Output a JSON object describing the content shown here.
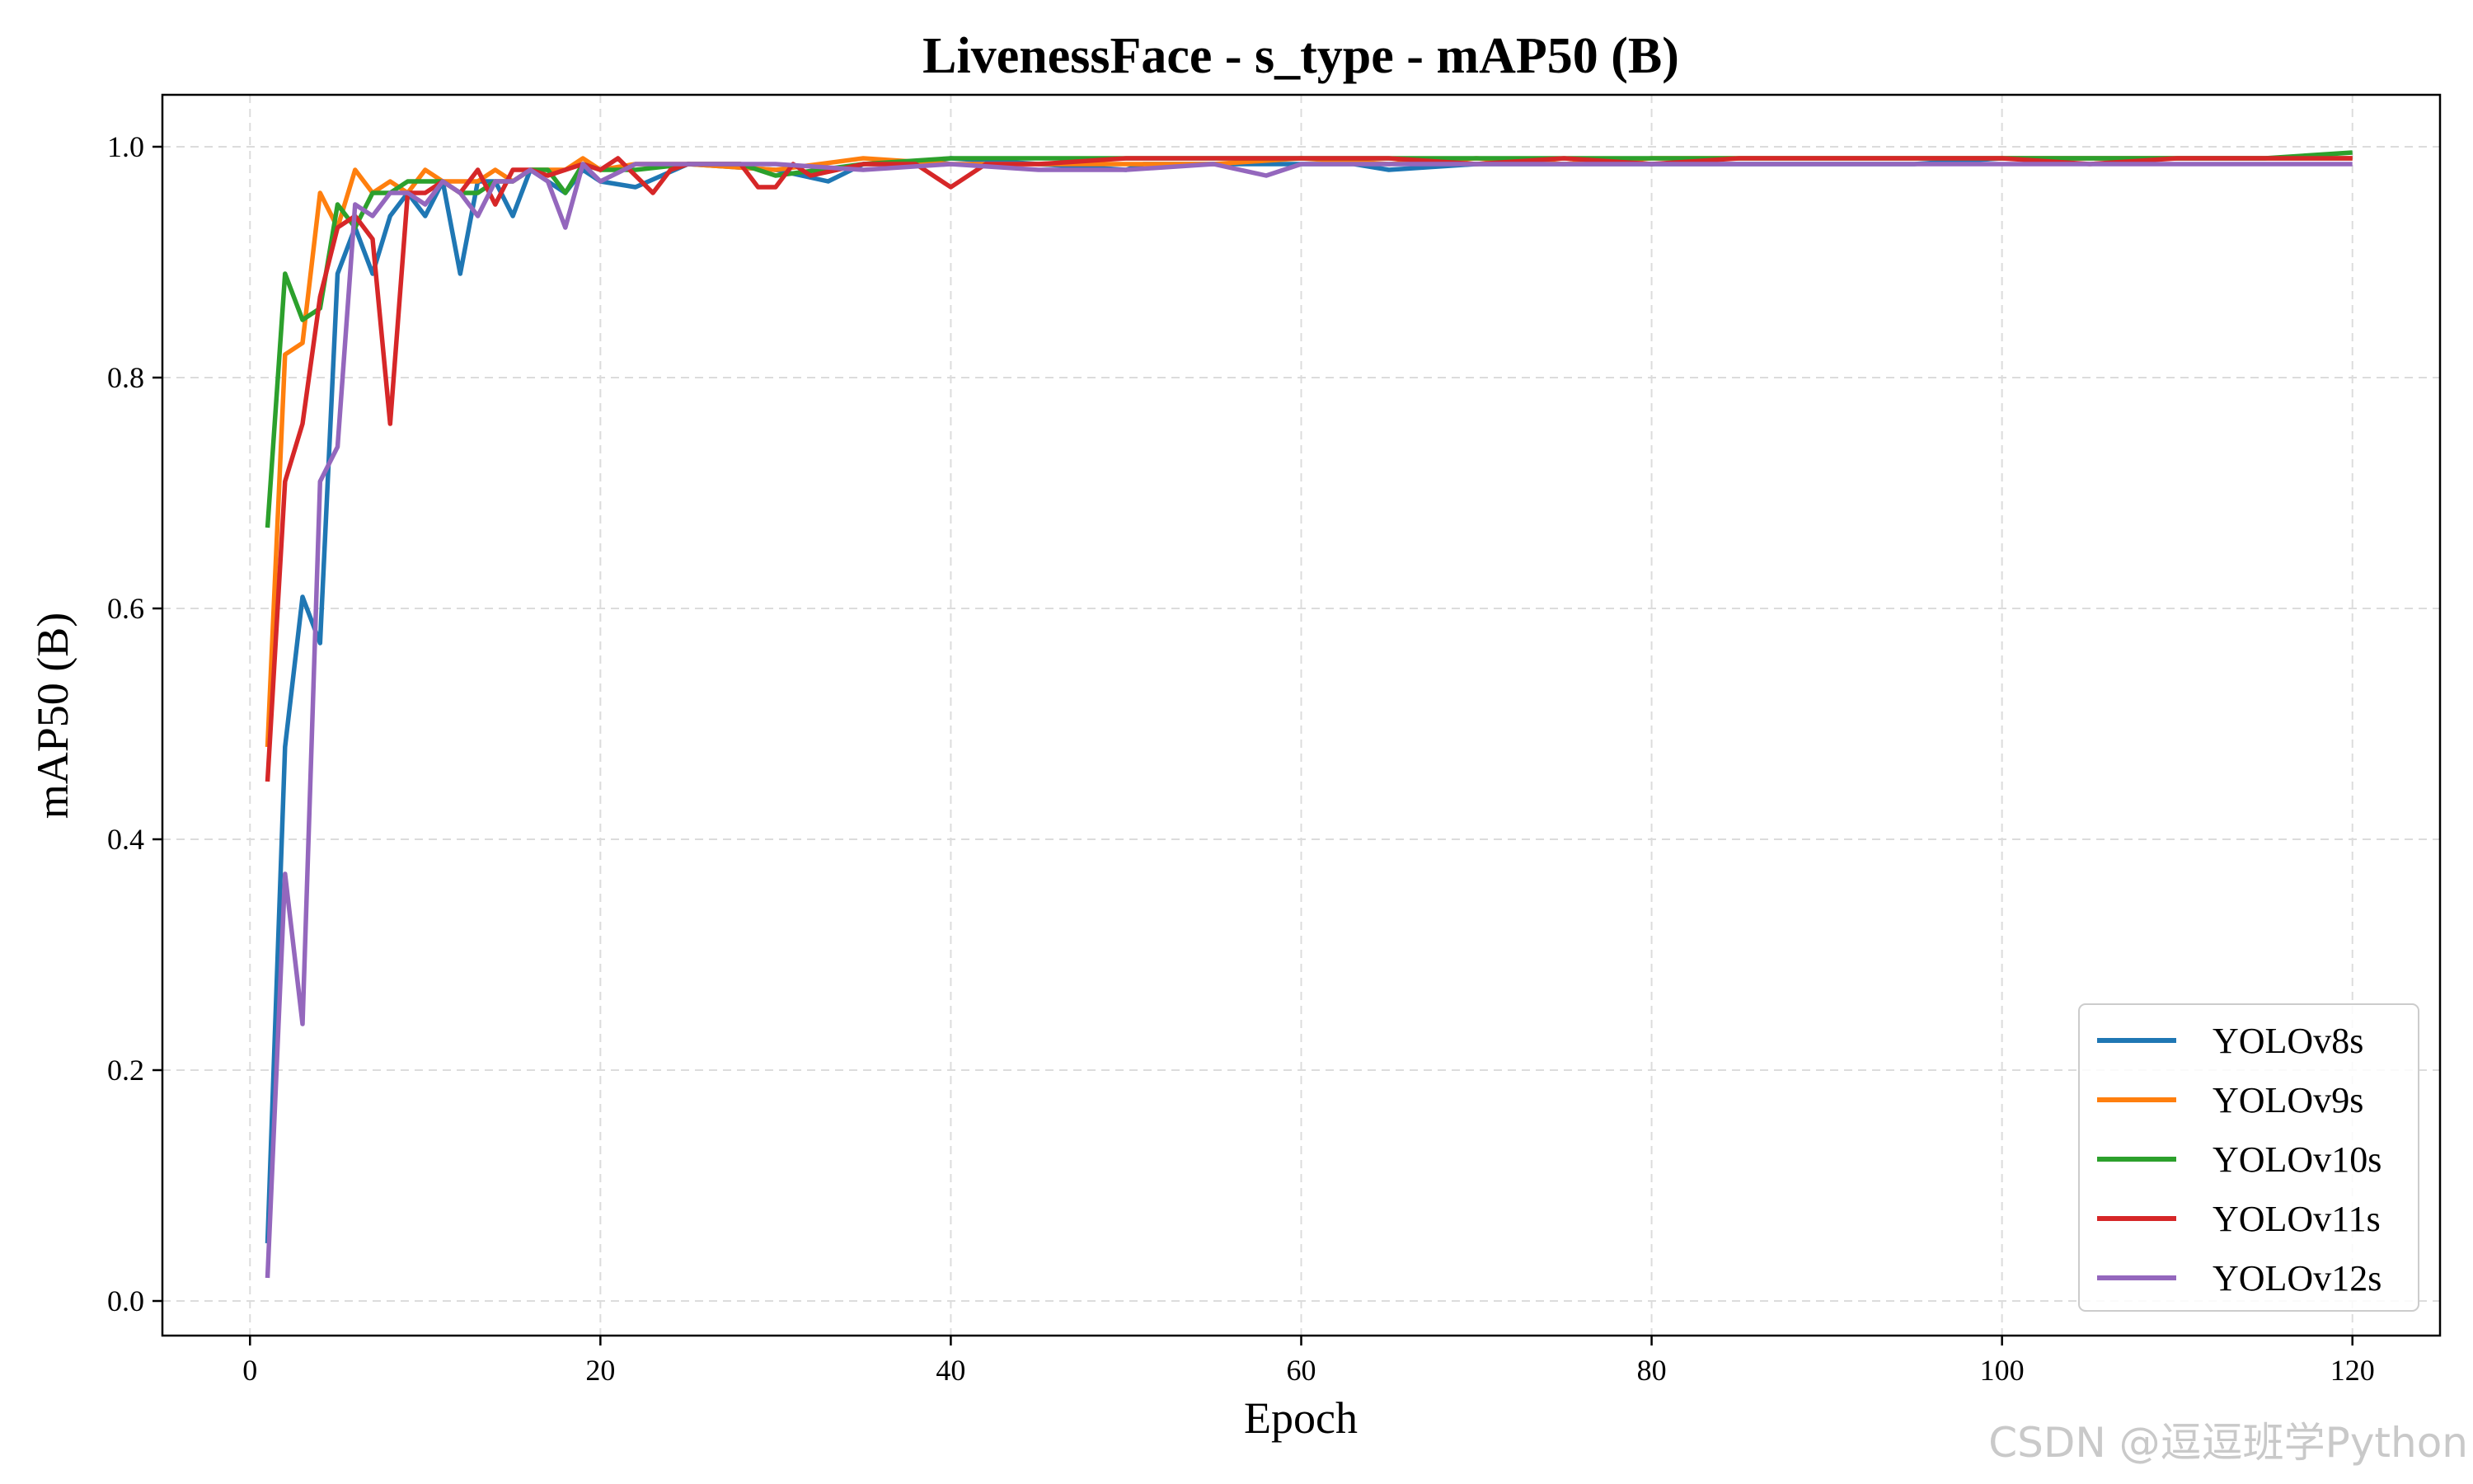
{
  "watermark": "CSDN @逗逗班学Python",
  "chart_data": {
    "type": "line",
    "title": "LivenessFace - s_type - mAP50 (B)",
    "xlabel": "Epoch",
    "ylabel": "mAP50 (B)",
    "xlim": [
      -5,
      125
    ],
    "ylim": [
      -0.03,
      1.045
    ],
    "xticks": [
      0,
      20,
      40,
      60,
      80,
      100,
      120
    ],
    "yticks": [
      0.0,
      0.2,
      0.4,
      0.6,
      0.8,
      1.0
    ],
    "grid": true,
    "legend": "lower right",
    "series": [
      {
        "name": "YOLOv8s",
        "color": "#1f77b4",
        "x": [
          1,
          2,
          3,
          4,
          5,
          6,
          7,
          8,
          9,
          10,
          11,
          12,
          13,
          14,
          15,
          16,
          17,
          18,
          19,
          20,
          22,
          25,
          30,
          33,
          35,
          38,
          40,
          45,
          50,
          51,
          55,
          60,
          63,
          65,
          70,
          75,
          80,
          85,
          90,
          95,
          100,
          105,
          110,
          115,
          120
        ],
        "y": [
          0.05,
          0.48,
          0.61,
          0.57,
          0.89,
          0.93,
          0.89,
          0.94,
          0.96,
          0.94,
          0.97,
          0.89,
          0.97,
          0.97,
          0.94,
          0.98,
          0.97,
          0.96,
          0.98,
          0.97,
          0.965,
          0.985,
          0.98,
          0.97,
          0.985,
          0.985,
          0.99,
          0.985,
          0.98,
          0.985,
          0.985,
          0.985,
          0.985,
          0.98,
          0.985,
          0.985,
          0.985,
          0.985,
          0.985,
          0.985,
          0.99,
          0.99,
          0.99,
          0.99,
          0.99
        ]
      },
      {
        "name": "YOLOv9s",
        "color": "#ff7f0e",
        "x": [
          1,
          2,
          3,
          4,
          5,
          6,
          7,
          8,
          9,
          10,
          11,
          12,
          13,
          14,
          15,
          16,
          17,
          18,
          19,
          20,
          22,
          25,
          30,
          35,
          40,
          45,
          50,
          55,
          60,
          65,
          70,
          75,
          80,
          85,
          90,
          95,
          100,
          105,
          110,
          115,
          120
        ],
        "y": [
          0.48,
          0.82,
          0.83,
          0.96,
          0.93,
          0.98,
          0.96,
          0.97,
          0.96,
          0.98,
          0.97,
          0.97,
          0.97,
          0.98,
          0.97,
          0.98,
          0.98,
          0.98,
          0.99,
          0.98,
          0.985,
          0.985,
          0.98,
          0.99,
          0.985,
          0.985,
          0.985,
          0.985,
          0.99,
          0.985,
          0.99,
          0.985,
          0.99,
          0.99,
          0.99,
          0.99,
          0.99,
          0.99,
          0.99,
          0.99,
          0.99
        ]
      },
      {
        "name": "YOLOv10s",
        "color": "#2ca02c",
        "x": [
          1,
          2,
          3,
          4,
          5,
          6,
          7,
          8,
          9,
          10,
          11,
          12,
          13,
          14,
          15,
          16,
          17,
          18,
          19,
          20,
          22,
          25,
          28,
          30,
          35,
          40,
          45,
          50,
          55,
          60,
          65,
          70,
          75,
          80,
          85,
          90,
          95,
          100,
          105,
          110,
          115,
          120
        ],
        "y": [
          0.67,
          0.89,
          0.85,
          0.86,
          0.95,
          0.93,
          0.96,
          0.96,
          0.97,
          0.97,
          0.97,
          0.96,
          0.96,
          0.97,
          0.97,
          0.98,
          0.98,
          0.96,
          0.985,
          0.98,
          0.98,
          0.985,
          0.985,
          0.975,
          0.985,
          0.99,
          0.99,
          0.99,
          0.99,
          0.99,
          0.99,
          0.99,
          0.99,
          0.99,
          0.99,
          0.99,
          0.99,
          0.99,
          0.99,
          0.99,
          0.99,
          0.995
        ]
      },
      {
        "name": "YOLOv11s",
        "color": "#d62728",
        "x": [
          1,
          2,
          3,
          4,
          5,
          6,
          7,
          8,
          9,
          10,
          11,
          12,
          13,
          14,
          15,
          16,
          17,
          18,
          19,
          20,
          21,
          22,
          23,
          24,
          25,
          28,
          29,
          30,
          31,
          32,
          35,
          38,
          40,
          42,
          45,
          50,
          55,
          60,
          65,
          70,
          75,
          80,
          85,
          90,
          95,
          100,
          105,
          110,
          115,
          120
        ],
        "y": [
          0.45,
          0.71,
          0.76,
          0.87,
          0.93,
          0.94,
          0.92,
          0.76,
          0.96,
          0.96,
          0.97,
          0.96,
          0.98,
          0.95,
          0.98,
          0.98,
          0.975,
          0.98,
          0.985,
          0.98,
          0.99,
          0.975,
          0.96,
          0.98,
          0.985,
          0.985,
          0.965,
          0.965,
          0.985,
          0.975,
          0.985,
          0.985,
          0.965,
          0.985,
          0.985,
          0.99,
          0.99,
          0.99,
          0.99,
          0.985,
          0.99,
          0.985,
          0.99,
          0.99,
          0.99,
          0.99,
          0.985,
          0.99,
          0.99,
          0.99
        ]
      },
      {
        "name": "YOLOv12s",
        "color": "#9467bd",
        "x": [
          1,
          2,
          3,
          4,
          5,
          6,
          7,
          8,
          9,
          10,
          11,
          12,
          13,
          14,
          15,
          16,
          17,
          18,
          19,
          20,
          22,
          25,
          30,
          35,
          40,
          45,
          50,
          55,
          58,
          60,
          65,
          70,
          75,
          80,
          85,
          90,
          95,
          100,
          105,
          110,
          115,
          120
        ],
        "y": [
          0.02,
          0.37,
          0.24,
          0.71,
          0.74,
          0.95,
          0.94,
          0.96,
          0.96,
          0.95,
          0.97,
          0.96,
          0.94,
          0.97,
          0.97,
          0.98,
          0.97,
          0.93,
          0.985,
          0.97,
          0.985,
          0.985,
          0.985,
          0.98,
          0.985,
          0.98,
          0.98,
          0.985,
          0.975,
          0.985,
          0.985,
          0.985,
          0.985,
          0.985,
          0.985,
          0.985,
          0.985,
          0.985,
          0.985,
          0.985,
          0.985,
          0.985
        ]
      }
    ]
  }
}
